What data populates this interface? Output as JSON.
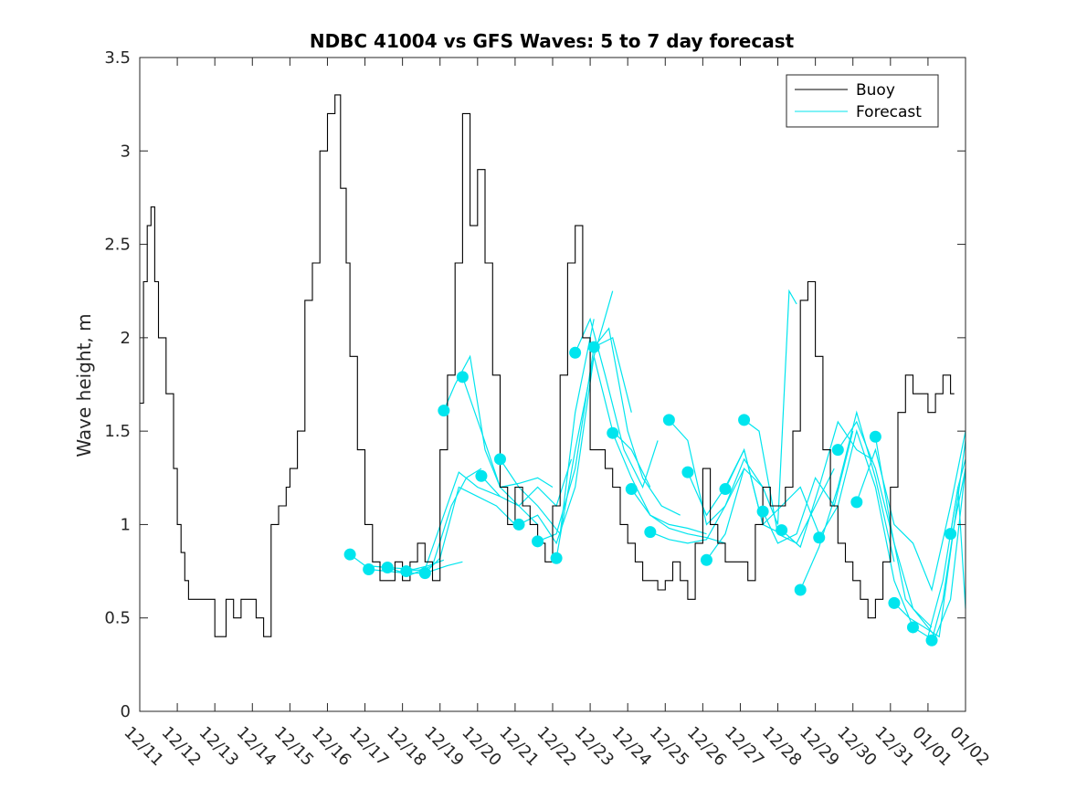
{
  "chart_data": {
    "type": "line",
    "title": "NDBC 41004 vs GFS Waves: 5 to 7 day forecast",
    "xlabel": "",
    "ylabel": "Wave height, m",
    "xlim": [
      0,
      22
    ],
    "ylim": [
      0,
      3.5
    ],
    "x_tick_labels": [
      "12/11",
      "12/12",
      "12/13",
      "12/14",
      "12/15",
      "12/16",
      "12/17",
      "12/18",
      "12/19",
      "12/20",
      "12/21",
      "12/22",
      "12/23",
      "12/24",
      "12/25",
      "12/26",
      "12/27",
      "12/28",
      "12/29",
      "12/30",
      "12/31",
      "01/01",
      "01/02"
    ],
    "y_ticks": [
      0,
      0.5,
      1,
      1.5,
      2,
      2.5,
      3,
      3.5
    ],
    "y_tick_labels": [
      "0",
      "0.5",
      "1",
      "1.5",
      "2",
      "2.5",
      "3",
      "3.5"
    ],
    "legend": {
      "position": "top-right",
      "entries": [
        {
          "label": "Buoy",
          "color": "#000000"
        },
        {
          "label": "Forecast",
          "color": "#00e5ee"
        }
      ]
    },
    "series": [
      {
        "name": "Buoy",
        "color": "#000000",
        "x": [
          0,
          0.1,
          0.2,
          0.3,
          0.4,
          0.5,
          0.7,
          0.9,
          1.0,
          1.1,
          1.2,
          1.3,
          1.5,
          1.7,
          2.0,
          2.3,
          2.5,
          2.7,
          2.9,
          3.1,
          3.3,
          3.5,
          3.7,
          3.9,
          4.0,
          4.2,
          4.4,
          4.6,
          4.8,
          5.0,
          5.2,
          5.35,
          5.5,
          5.6,
          5.8,
          6.0,
          6.2,
          6.4,
          6.6,
          6.8,
          7.0,
          7.2,
          7.4,
          7.6,
          7.8,
          8.0,
          8.2,
          8.4,
          8.6,
          8.8,
          9.0,
          9.2,
          9.4,
          9.6,
          9.8,
          10.0,
          10.2,
          10.4,
          10.6,
          10.8,
          11.0,
          11.2,
          11.4,
          11.6,
          11.8,
          12.0,
          12.2,
          12.4,
          12.6,
          12.8,
          13.0,
          13.2,
          13.4,
          13.6,
          13.8,
          14.0,
          14.2,
          14.4,
          14.6,
          14.8,
          15.0,
          15.2,
          15.4,
          15.6,
          15.8,
          16.0,
          16.2,
          16.4,
          16.6,
          16.8,
          17.0,
          17.2,
          17.4,
          17.6,
          17.8,
          18.0,
          18.2,
          18.4,
          18.6,
          18.8,
          19.0,
          19.2,
          19.4,
          19.6,
          19.8,
          20.0,
          20.2,
          20.4,
          20.6,
          20.8,
          21.0,
          21.2,
          21.4,
          21.6,
          21.7
        ],
        "y": [
          1.65,
          2.3,
          2.6,
          2.7,
          2.3,
          2.0,
          1.7,
          1.3,
          1.0,
          0.85,
          0.7,
          0.6,
          0.6,
          0.6,
          0.4,
          0.6,
          0.5,
          0.6,
          0.6,
          0.5,
          0.4,
          1.0,
          1.1,
          1.2,
          1.3,
          1.5,
          2.2,
          2.4,
          3.0,
          3.2,
          3.3,
          2.8,
          2.4,
          1.9,
          1.4,
          1.0,
          0.8,
          0.7,
          0.7,
          0.8,
          0.7,
          0.8,
          0.9,
          0.8,
          0.7,
          1.4,
          1.8,
          2.4,
          3.2,
          2.6,
          2.9,
          2.4,
          1.8,
          1.2,
          1.0,
          1.2,
          1.1,
          1.0,
          0.9,
          0.8,
          1.1,
          1.8,
          2.4,
          2.6,
          2.0,
          1.4,
          1.4,
          1.3,
          1.2,
          1.0,
          0.9,
          0.8,
          0.7,
          0.7,
          0.65,
          0.7,
          0.8,
          0.7,
          0.6,
          0.9,
          1.3,
          1.0,
          0.9,
          0.8,
          0.8,
          0.8,
          0.7,
          1.0,
          1.2,
          1.1,
          1.1,
          1.2,
          1.5,
          2.2,
          2.3,
          1.9,
          1.4,
          1.1,
          0.9,
          0.8,
          0.7,
          0.6,
          0.5,
          0.6,
          0.8,
          1.2,
          1.6,
          1.8,
          1.7,
          1.7,
          1.6,
          1.7,
          1.8,
          1.7,
          1.7
        ]
      }
    ],
    "forecast_runs": [
      {
        "x": [
          5.6,
          6.0,
          6.6,
          7.3,
          7.7,
          8.1
        ],
        "y": [
          0.84,
          0.78,
          0.77,
          0.76,
          0.78,
          0.81
        ]
      },
      {
        "x": [
          6.1,
          6.6,
          7.1,
          7.6,
          8.2,
          8.6
        ],
        "y": [
          0.76,
          0.75,
          0.74,
          0.74,
          0.78,
          0.8
        ]
      },
      {
        "x": [
          6.6,
          7.2,
          7.8,
          8.3,
          8.7,
          9.1
        ],
        "y": [
          0.77,
          0.73,
          0.78,
          1.1,
          1.25,
          1.3
        ]
      },
      {
        "x": [
          7.1,
          7.6,
          8.1,
          8.5,
          9.0,
          9.6
        ],
        "y": [
          0.75,
          0.76,
          1.05,
          1.28,
          1.2,
          1.15
        ]
      },
      {
        "x": [
          7.6,
          8.0,
          8.5,
          9.0,
          9.5,
          10.0
        ],
        "y": [
          0.74,
          0.82,
          1.2,
          1.15,
          1.1,
          1.0
        ]
      },
      {
        "x": [
          8.1,
          8.4,
          8.8,
          9.2,
          9.6,
          10.1,
          10.6
        ],
        "y": [
          1.61,
          1.75,
          1.9,
          1.4,
          1.2,
          1.1,
          1.0
        ]
      },
      {
        "x": [
          8.6,
          9.1,
          9.6,
          10.1,
          10.6,
          11.0
        ],
        "y": [
          1.79,
          1.5,
          1.2,
          1.22,
          1.25,
          1.2
        ]
      },
      {
        "x": [
          9.1,
          9.6,
          10.1,
          10.6,
          11.1,
          11.5
        ],
        "y": [
          1.26,
          1.15,
          1.1,
          1.2,
          1.1,
          1.35
        ]
      },
      {
        "x": [
          9.6,
          10.1,
          10.6,
          11.2,
          11.6,
          12.1
        ],
        "y": [
          1.35,
          1.2,
          1.1,
          0.95,
          1.6,
          2.1
        ]
      },
      {
        "x": [
          10.1,
          10.6,
          11.1,
          11.6,
          12.1,
          12.6
        ],
        "y": [
          1.0,
          1.05,
          0.9,
          1.2,
          1.9,
          2.25
        ]
      },
      {
        "x": [
          10.6,
          11.1,
          11.6,
          12.1,
          12.6,
          13.1
        ],
        "y": [
          0.91,
          0.95,
          1.3,
          1.95,
          2.0,
          1.6
        ]
      },
      {
        "x": [
          11.1,
          11.6,
          12.1,
          12.6,
          13.1,
          13.6
        ],
        "y": [
          0.82,
          1.4,
          1.9,
          1.5,
          1.4,
          1.2
        ]
      },
      {
        "x": [
          11.6,
          12.0,
          12.4,
          12.9,
          13.4,
          13.8
        ],
        "y": [
          1.92,
          2.1,
          1.8,
          1.4,
          1.2,
          1.45
        ]
      },
      {
        "x": [
          12.1,
          12.5,
          13.0,
          13.4,
          13.9,
          14.4
        ],
        "y": [
          1.95,
          2.05,
          1.5,
          1.25,
          1.1,
          1.05
        ]
      },
      {
        "x": [
          12.6,
          13.1,
          13.6,
          14.1,
          14.6,
          15.1
        ],
        "y": [
          1.49,
          1.25,
          1.05,
          1.0,
          0.98,
          0.95
        ]
      },
      {
        "x": [
          13.1,
          13.6,
          14.1,
          14.6,
          15.1,
          15.6
        ],
        "y": [
          1.19,
          1.05,
          0.98,
          0.95,
          0.93,
          0.9
        ]
      },
      {
        "x": [
          13.6,
          14.1,
          14.6,
          15.1,
          15.6,
          16.1
        ],
        "y": [
          0.96,
          0.92,
          0.9,
          0.92,
          1.1,
          1.3
        ]
      },
      {
        "x": [
          14.1,
          14.6,
          15.1,
          15.6,
          16.1,
          16.6
        ],
        "y": [
          1.56,
          1.45,
          1.0,
          1.1,
          1.35,
          1.2
        ]
      },
      {
        "x": [
          14.6,
          15.1,
          15.6,
          16.1,
          16.6,
          17.1
        ],
        "y": [
          1.28,
          1.05,
          1.2,
          1.4,
          1.0,
          0.95
        ]
      },
      {
        "x": [
          15.1,
          15.6,
          16.1,
          16.6,
          17.0,
          17.3,
          17.5
        ],
        "y": [
          0.81,
          0.95,
          1.3,
          1.2,
          1.0,
          2.25,
          2.18
        ]
      },
      {
        "x": [
          15.6,
          16.1,
          16.6,
          17.1,
          17.6,
          18.1
        ],
        "y": [
          1.19,
          1.4,
          1.0,
          1.1,
          1.2,
          0.95
        ]
      },
      {
        "x": [
          16.1,
          16.5,
          17.0,
          17.5,
          18.0,
          18.5
        ],
        "y": [
          1.56,
          1.5,
          0.95,
          0.9,
          1.1,
          1.3
        ]
      },
      {
        "x": [
          16.6,
          17.0,
          17.5,
          18.0,
          18.5,
          19.0
        ],
        "y": [
          1.07,
          0.9,
          0.95,
          1.25,
          1.1,
          1.5
        ]
      },
      {
        "x": [
          17.1,
          17.6,
          18.1,
          18.6,
          19.1,
          19.5
        ],
        "y": [
          0.97,
          0.88,
          1.2,
          1.55,
          1.4,
          1.35
        ]
      },
      {
        "x": [
          17.6,
          18.1,
          18.6,
          19.1,
          19.6,
          20.1
        ],
        "y": [
          0.65,
          0.88,
          1.2,
          1.6,
          1.25,
          0.8
        ]
      },
      {
        "x": [
          18.1,
          18.6,
          19.1,
          19.6,
          20.1,
          20.6
        ],
        "y": [
          0.93,
          1.1,
          1.5,
          1.2,
          0.7,
          0.45
        ]
      },
      {
        "x": [
          18.6,
          19.1,
          19.6,
          20.1,
          20.6,
          21.1
        ],
        "y": [
          1.4,
          1.55,
          1.3,
          0.9,
          0.55,
          0.45
        ]
      },
      {
        "x": [
          19.1,
          19.6,
          20.1,
          20.6,
          21.1,
          21.6,
          22.0
        ],
        "y": [
          1.12,
          1.4,
          1.0,
          0.9,
          0.65,
          1.1,
          1.5
        ]
      },
      {
        "x": [
          19.6,
          20.0,
          20.4,
          20.8,
          21.2,
          21.6,
          22.0
        ],
        "y": [
          1.47,
          1.0,
          0.6,
          0.5,
          0.4,
          0.6,
          1.3
        ]
      },
      {
        "x": [
          20.1,
          20.5,
          20.9,
          21.3,
          21.7,
          22.0
        ],
        "y": [
          0.58,
          0.5,
          0.45,
          0.4,
          1.0,
          1.3
        ]
      },
      {
        "x": [
          20.6,
          21.0,
          21.4,
          21.8,
          22.0
        ],
        "y": [
          0.45,
          0.4,
          0.7,
          1.2,
          0.55
        ]
      },
      {
        "x": [
          21.1,
          21.4,
          21.7,
          22.0
        ],
        "y": [
          0.38,
          0.6,
          1.0,
          1.45
        ]
      },
      {
        "x": [
          21.6,
          21.8,
          22.0
        ],
        "y": [
          0.95,
          1.2,
          1.35
        ]
      }
    ]
  }
}
